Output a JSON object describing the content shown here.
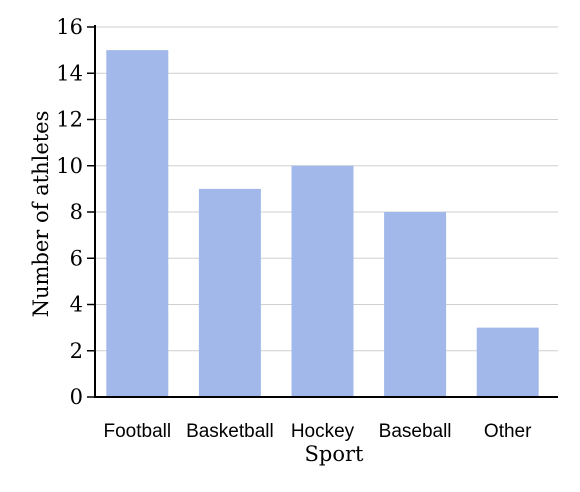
{
  "chart_data": {
    "type": "bar",
    "categories": [
      "Football",
      "Basketball",
      "Hockey",
      "Baseball",
      "Other"
    ],
    "values": [
      15,
      9,
      10,
      8,
      3
    ],
    "xlabel": "Sport",
    "ylabel": "Number of athletes",
    "ylim": [
      0,
      16
    ],
    "yticks": [
      "0",
      "2",
      "4",
      "6",
      "8",
      "10",
      "12",
      "14",
      "16"
    ],
    "grid": true,
    "colors": {
      "bar": "#a2b8ea"
    }
  }
}
